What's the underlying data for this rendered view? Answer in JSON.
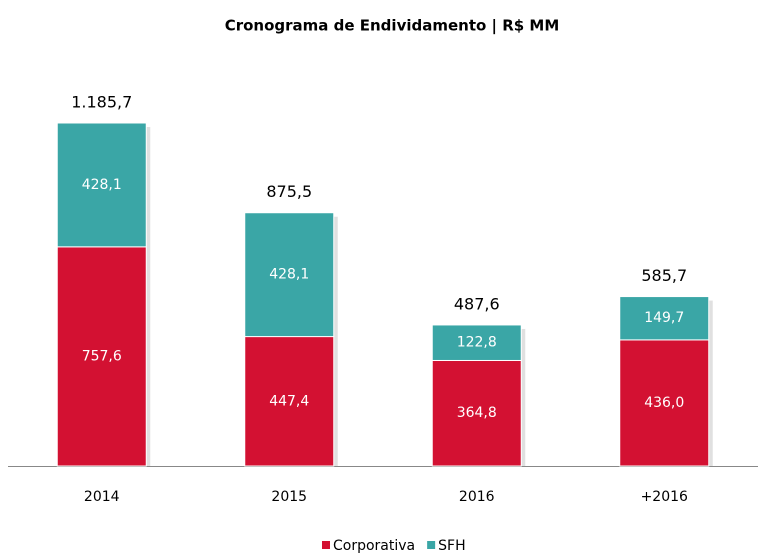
{
  "chart_data": {
    "type": "stacked_bar",
    "title": "Cronograma de Endividamento | R$ MM",
    "categories": [
      "2014",
      "2015",
      "2016",
      "+2016"
    ],
    "series": [
      {
        "name": "Corporativa",
        "color": "#d31132",
        "values": [
          757.6,
          447.4,
          364.8,
          436.0
        ],
        "value_labels": [
          "757,6",
          "447,4",
          "364,8",
          "436,0"
        ]
      },
      {
        "name": "SFH",
        "color": "#3aa6a6",
        "values": [
          428.1,
          428.1,
          122.8,
          149.7
        ],
        "value_labels": [
          "428,1",
          "428,1",
          "122,8",
          "149,7"
        ]
      }
    ],
    "total_labels": [
      "1.185,7",
      "875,5",
      "487,6",
      "585,7"
    ],
    "legend": "bottom"
  }
}
